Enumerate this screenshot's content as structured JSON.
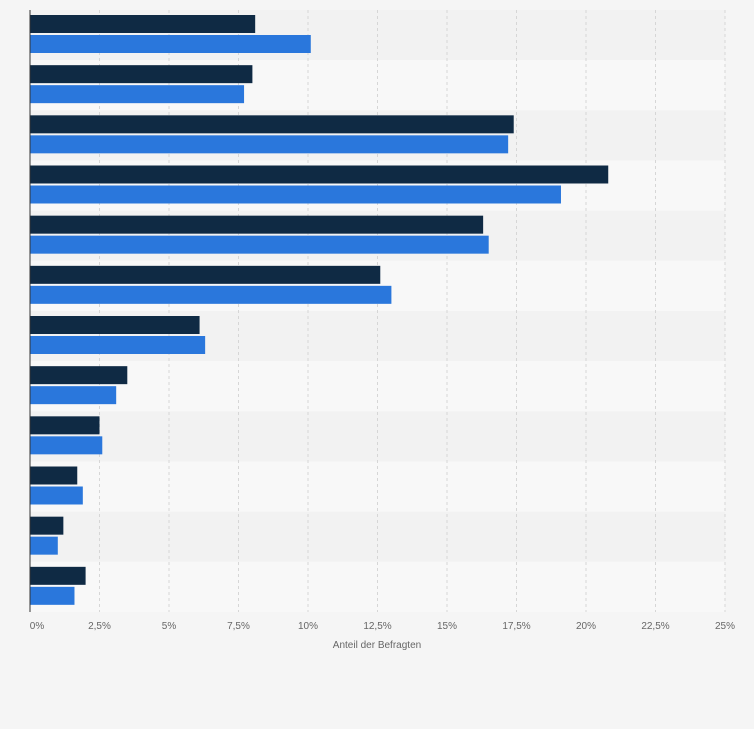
{
  "chart_data": {
    "type": "bar",
    "orientation": "horizontal",
    "xlabel": "Anteil der Befragten",
    "xlim": [
      0,
      25
    ],
    "xticks": [
      "0%",
      "2,5%",
      "5%",
      "7,5%",
      "10%",
      "12,5%",
      "15%",
      "17,5%",
      "20%",
      "22,5%",
      "25%"
    ],
    "category_count": 12,
    "series": [
      {
        "color": "#0f2a44",
        "values": [
          8.1,
          8.0,
          17.4,
          20.8,
          16.3,
          12.6,
          6.1,
          3.5,
          2.5,
          1.7,
          1.2,
          2.0
        ]
      },
      {
        "color": "#2a77dc",
        "values": [
          10.1,
          7.7,
          17.2,
          19.1,
          16.5,
          13.0,
          6.3,
          3.1,
          2.6,
          1.9,
          1.0,
          1.6
        ]
      }
    ],
    "grid": true,
    "legend": "none"
  }
}
